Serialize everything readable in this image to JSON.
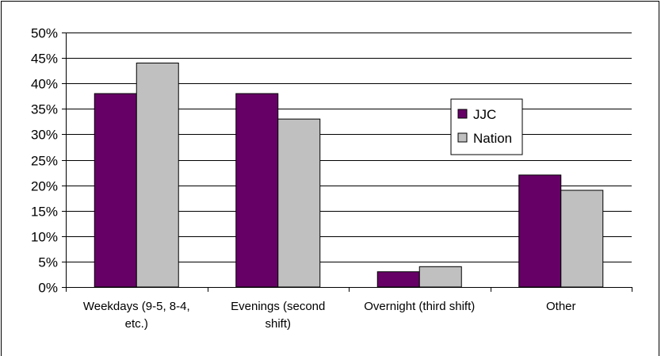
{
  "chart_data": {
    "type": "bar",
    "title": "",
    "xlabel": "",
    "ylabel": "",
    "categories": [
      [
        "Weekdays (9-5, 8-4,",
        "etc.)"
      ],
      [
        "Evenings (second",
        "shift)"
      ],
      [
        "Overnight (third shift)"
      ],
      [
        "Other"
      ]
    ],
    "series": [
      {
        "name": "JJC",
        "values": [
          38,
          38,
          3,
          22
        ],
        "color": "#660066"
      },
      {
        "name": "Nation",
        "values": [
          44,
          33,
          4,
          19
        ],
        "color": "#c0c0c0"
      }
    ],
    "ylim": [
      0,
      50
    ],
    "ytick_step": 5,
    "ytick_format": "percent",
    "grid": true,
    "legend_position": "right"
  }
}
